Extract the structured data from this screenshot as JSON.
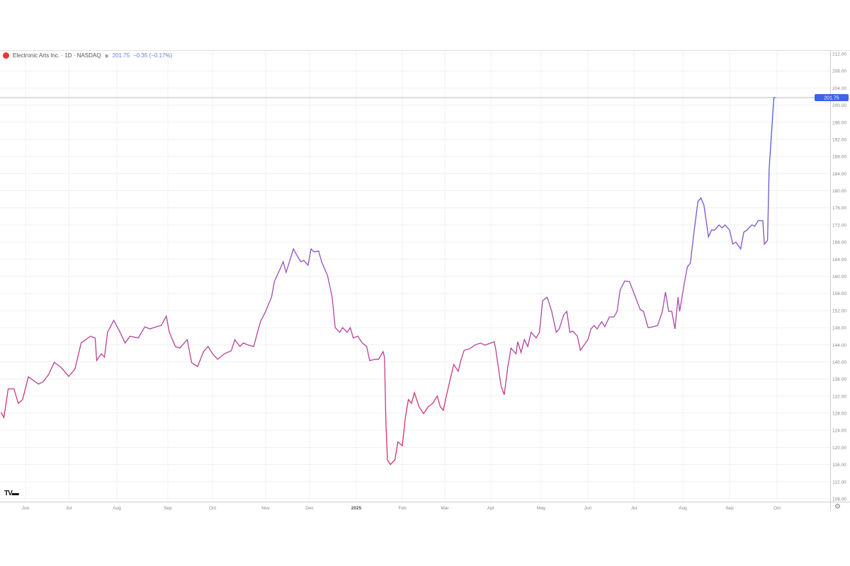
{
  "header": {
    "symbol_title": "Electronic Arts Inc. · 1D · NASDAQ",
    "last": "201.75",
    "change": "−0.35 (−0.17%)",
    "logo_icon": "ea-logo-icon",
    "visibility_icon": "eye-icon"
  },
  "footer": {
    "watermark_icon": "tradingview-logo-icon",
    "settings_icon": "gear-icon"
  },
  "colors": {
    "line_top": "#3a5bf0",
    "line_mid": "#9b4fb8",
    "line_bottom": "#e8285a",
    "price_label": "#3d63e8",
    "grid": "#f0f0f0"
  },
  "chart_data": {
    "type": "line",
    "title": "Electronic Arts Inc. · 1D · NASDAQ",
    "last_price_label": "201.75",
    "ylim": [
      108,
      212
    ],
    "y_ticks": [
      "108.00",
      "112.00",
      "116.00",
      "120.00",
      "124.00",
      "128.00",
      "132.00",
      "136.00",
      "140.00",
      "144.00",
      "148.00",
      "152.00",
      "156.00",
      "160.00",
      "164.00",
      "168.00",
      "172.00",
      "176.00",
      "180.00",
      "184.00",
      "188.00",
      "192.00",
      "196.00",
      "200.00",
      "204.00",
      "208.00",
      "212.00"
    ],
    "x_ticks": [
      {
        "label": "Jun",
        "date": "2024-06-01"
      },
      {
        "label": "Jul",
        "date": "2024-07-01"
      },
      {
        "label": "Aug",
        "date": "2024-08-01"
      },
      {
        "label": "Sep",
        "date": "2024-09-01"
      },
      {
        "label": "Oct",
        "date": "2024-10-01"
      },
      {
        "label": "Nov",
        "date": "2024-11-01"
      },
      {
        "label": "Dec",
        "date": "2024-12-01"
      },
      {
        "label": "2025",
        "date": "2025-01-01",
        "bold": true
      },
      {
        "label": "Feb",
        "date": "2025-02-01"
      },
      {
        "label": "Mar",
        "date": "2025-03-01"
      },
      {
        "label": "Apr",
        "date": "2025-04-01"
      },
      {
        "label": "May",
        "date": "2025-05-01"
      },
      {
        "label": "Jun",
        "date": "2025-06-01"
      },
      {
        "label": "Jul",
        "date": "2025-07-01"
      },
      {
        "label": "Aug",
        "date": "2025-08-01"
      },
      {
        "label": "Sep",
        "date": "2025-09-01"
      },
      {
        "label": "Oct",
        "date": "2025-10-01"
      }
    ],
    "grid": true,
    "series": [
      {
        "points": [
          [
            "2024-05-15",
            128.2
          ],
          [
            "2024-05-17",
            127.0
          ],
          [
            "2024-05-20",
            133.7
          ],
          [
            "2024-05-24",
            133.7
          ],
          [
            "2024-05-27",
            130.3
          ],
          [
            "2024-05-30",
            131.2
          ],
          [
            "2024-06-03",
            136.5
          ],
          [
            "2024-06-10",
            134.8
          ],
          [
            "2024-06-13",
            135.3
          ],
          [
            "2024-06-17",
            137.0
          ],
          [
            "2024-06-21",
            139.9
          ],
          [
            "2024-06-26",
            138.6
          ],
          [
            "2024-07-01",
            136.6
          ],
          [
            "2024-07-05",
            138.3
          ],
          [
            "2024-07-09",
            144.4
          ],
          [
            "2024-07-15",
            146.0
          ],
          [
            "2024-07-18",
            145.6
          ],
          [
            "2024-07-19",
            140.3
          ],
          [
            "2024-07-22",
            141.9
          ],
          [
            "2024-07-24",
            141.1
          ],
          [
            "2024-07-26",
            146.9
          ],
          [
            "2024-07-30",
            149.7
          ],
          [
            "2024-08-03",
            146.9
          ],
          [
            "2024-08-06",
            144.4
          ],
          [
            "2024-08-09",
            146.0
          ],
          [
            "2024-08-14",
            145.6
          ],
          [
            "2024-08-18",
            148.2
          ],
          [
            "2024-08-21",
            147.7
          ],
          [
            "2024-08-25",
            148.2
          ],
          [
            "2024-08-28",
            148.5
          ],
          [
            "2024-08-31",
            150.7
          ],
          [
            "2024-09-02",
            146.9
          ],
          [
            "2024-09-06",
            143.6
          ],
          [
            "2024-09-09",
            143.2
          ],
          [
            "2024-09-14",
            145.2
          ],
          [
            "2024-09-17",
            139.8
          ],
          [
            "2024-09-21",
            138.9
          ],
          [
            "2024-09-25",
            142.4
          ],
          [
            "2024-09-28",
            143.6
          ],
          [
            "2024-10-01",
            141.9
          ],
          [
            "2024-10-04",
            140.6
          ],
          [
            "2024-10-08",
            141.9
          ],
          [
            "2024-10-12",
            142.6
          ],
          [
            "2024-10-14",
            145.2
          ],
          [
            "2024-10-17",
            143.6
          ],
          [
            "2024-10-19",
            144.4
          ],
          [
            "2024-10-22",
            143.9
          ],
          [
            "2024-10-25",
            143.6
          ],
          [
            "2024-10-29",
            149.4
          ],
          [
            "2024-11-01",
            151.8
          ],
          [
            "2024-11-05",
            155.1
          ],
          [
            "2024-11-07",
            158.8
          ],
          [
            "2024-11-11",
            161.8
          ],
          [
            "2024-11-13",
            163.4
          ],
          [
            "2024-11-15",
            160.9
          ],
          [
            "2024-11-18",
            164.2
          ],
          [
            "2024-11-20",
            166.4
          ],
          [
            "2024-11-22",
            165.1
          ],
          [
            "2024-11-25",
            163.4
          ],
          [
            "2024-11-27",
            163.7
          ],
          [
            "2024-11-30",
            162.6
          ],
          [
            "2024-12-02",
            166.4
          ],
          [
            "2024-12-04",
            165.7
          ],
          [
            "2024-12-07",
            165.9
          ],
          [
            "2024-12-09",
            163.4
          ],
          [
            "2024-12-13",
            160.1
          ],
          [
            "2024-12-16",
            155.1
          ],
          [
            "2024-12-18",
            148.0
          ],
          [
            "2024-12-21",
            146.9
          ],
          [
            "2024-12-23",
            148.0
          ],
          [
            "2024-12-26",
            146.9
          ],
          [
            "2024-12-28",
            148.0
          ],
          [
            "2024-12-30",
            145.6
          ],
          [
            "2025-01-02",
            146.0
          ],
          [
            "2025-01-05",
            144.4
          ],
          [
            "2025-01-08",
            143.6
          ],
          [
            "2025-01-10",
            140.3
          ],
          [
            "2025-01-14",
            140.6
          ],
          [
            "2025-01-16",
            140.6
          ],
          [
            "2025-01-19",
            142.4
          ],
          [
            "2025-01-20",
            141.1
          ],
          [
            "2025-01-21",
            125.4
          ],
          [
            "2025-01-22",
            117.1
          ],
          [
            "2025-01-24",
            116.0
          ],
          [
            "2025-01-27",
            117.1
          ],
          [
            "2025-01-29",
            121.3
          ],
          [
            "2025-02-01",
            120.4
          ],
          [
            "2025-02-03",
            127.0
          ],
          [
            "2025-02-05",
            131.2
          ],
          [
            "2025-02-07",
            130.3
          ],
          [
            "2025-02-09",
            132.8
          ],
          [
            "2025-02-12",
            129.5
          ],
          [
            "2025-02-15",
            127.9
          ],
          [
            "2025-02-18",
            129.5
          ],
          [
            "2025-02-21",
            130.3
          ],
          [
            "2025-02-24",
            132.0
          ],
          [
            "2025-02-26",
            129.5
          ],
          [
            "2025-02-28",
            128.7
          ],
          [
            "2025-03-02",
            132.0
          ],
          [
            "2025-03-05",
            136.5
          ],
          [
            "2025-03-07",
            139.4
          ],
          [
            "2025-03-10",
            137.8
          ],
          [
            "2025-03-12",
            140.6
          ],
          [
            "2025-03-14",
            142.7
          ],
          [
            "2025-03-18",
            143.1
          ],
          [
            "2025-03-21",
            143.9
          ],
          [
            "2025-03-25",
            144.4
          ],
          [
            "2025-03-28",
            143.9
          ],
          [
            "2025-04-03",
            144.7
          ],
          [
            "2025-04-04",
            142.7
          ],
          [
            "2025-04-07",
            134.5
          ],
          [
            "2025-04-09",
            132.3
          ],
          [
            "2025-04-11",
            138.6
          ],
          [
            "2025-04-13",
            143.2
          ],
          [
            "2025-04-16",
            141.9
          ],
          [
            "2025-04-17",
            144.7
          ],
          [
            "2025-04-19",
            142.2
          ],
          [
            "2025-04-21",
            145.2
          ],
          [
            "2025-04-23",
            143.6
          ],
          [
            "2025-04-25",
            146.9
          ],
          [
            "2025-04-28",
            145.6
          ],
          [
            "2025-04-30",
            146.9
          ],
          [
            "2025-05-02",
            154.3
          ],
          [
            "2025-05-05",
            155.1
          ],
          [
            "2025-05-08",
            151.8
          ],
          [
            "2025-05-11",
            146.9
          ],
          [
            "2025-05-13",
            147.7
          ],
          [
            "2025-05-16",
            151.0
          ],
          [
            "2025-05-18",
            151.8
          ],
          [
            "2025-05-20",
            146.9
          ],
          [
            "2025-05-22",
            147.2
          ],
          [
            "2025-05-25",
            146.0
          ],
          [
            "2025-05-27",
            142.7
          ],
          [
            "2025-06-01",
            145.2
          ],
          [
            "2025-06-03",
            147.7
          ],
          [
            "2025-06-05",
            148.5
          ],
          [
            "2025-06-07",
            147.7
          ],
          [
            "2025-06-10",
            149.4
          ],
          [
            "2025-06-12",
            148.2
          ],
          [
            "2025-06-15",
            150.5
          ],
          [
            "2025-06-18",
            150.5
          ],
          [
            "2025-06-20",
            151.8
          ],
          [
            "2025-06-22",
            156.8
          ],
          [
            "2025-06-25",
            158.9
          ],
          [
            "2025-06-28",
            158.8
          ],
          [
            "2025-07-02",
            155.1
          ],
          [
            "2025-07-05",
            152.2
          ],
          [
            "2025-07-07",
            151.8
          ],
          [
            "2025-07-10",
            148.0
          ],
          [
            "2025-07-13",
            148.2
          ],
          [
            "2025-07-16",
            148.5
          ],
          [
            "2025-07-19",
            151.8
          ],
          [
            "2025-07-21",
            156.3
          ],
          [
            "2025-07-23",
            151.8
          ],
          [
            "2025-07-25",
            151.8
          ],
          [
            "2025-07-27",
            147.7
          ],
          [
            "2025-07-29",
            155.1
          ],
          [
            "2025-07-30",
            151.8
          ],
          [
            "2025-08-02",
            158.4
          ],
          [
            "2025-08-04",
            162.2
          ],
          [
            "2025-08-06",
            163.1
          ],
          [
            "2025-08-08",
            169.2
          ],
          [
            "2025-08-11",
            177.5
          ],
          [
            "2025-08-13",
            178.3
          ],
          [
            "2025-08-15",
            176.6
          ],
          [
            "2025-08-18",
            169.2
          ],
          [
            "2025-08-20",
            170.8
          ],
          [
            "2025-08-22",
            170.8
          ],
          [
            "2025-08-25",
            172.0
          ],
          [
            "2025-08-27",
            171.3
          ],
          [
            "2025-08-29",
            172.0
          ],
          [
            "2025-09-01",
            170.8
          ],
          [
            "2025-09-03",
            167.5
          ],
          [
            "2025-09-05",
            168.0
          ],
          [
            "2025-09-08",
            166.4
          ],
          [
            "2025-09-10",
            170.3
          ],
          [
            "2025-09-12",
            170.8
          ],
          [
            "2025-09-15",
            172.0
          ],
          [
            "2025-09-17",
            171.7
          ],
          [
            "2025-09-19",
            173.0
          ],
          [
            "2025-09-22",
            173.0
          ],
          [
            "2025-09-23",
            167.5
          ],
          [
            "2025-09-25",
            168.4
          ],
          [
            "2025-09-26",
            184.9
          ],
          [
            "2025-09-29",
            201.75
          ],
          [
            "2025-09-30",
            201.75
          ]
        ]
      }
    ]
  }
}
